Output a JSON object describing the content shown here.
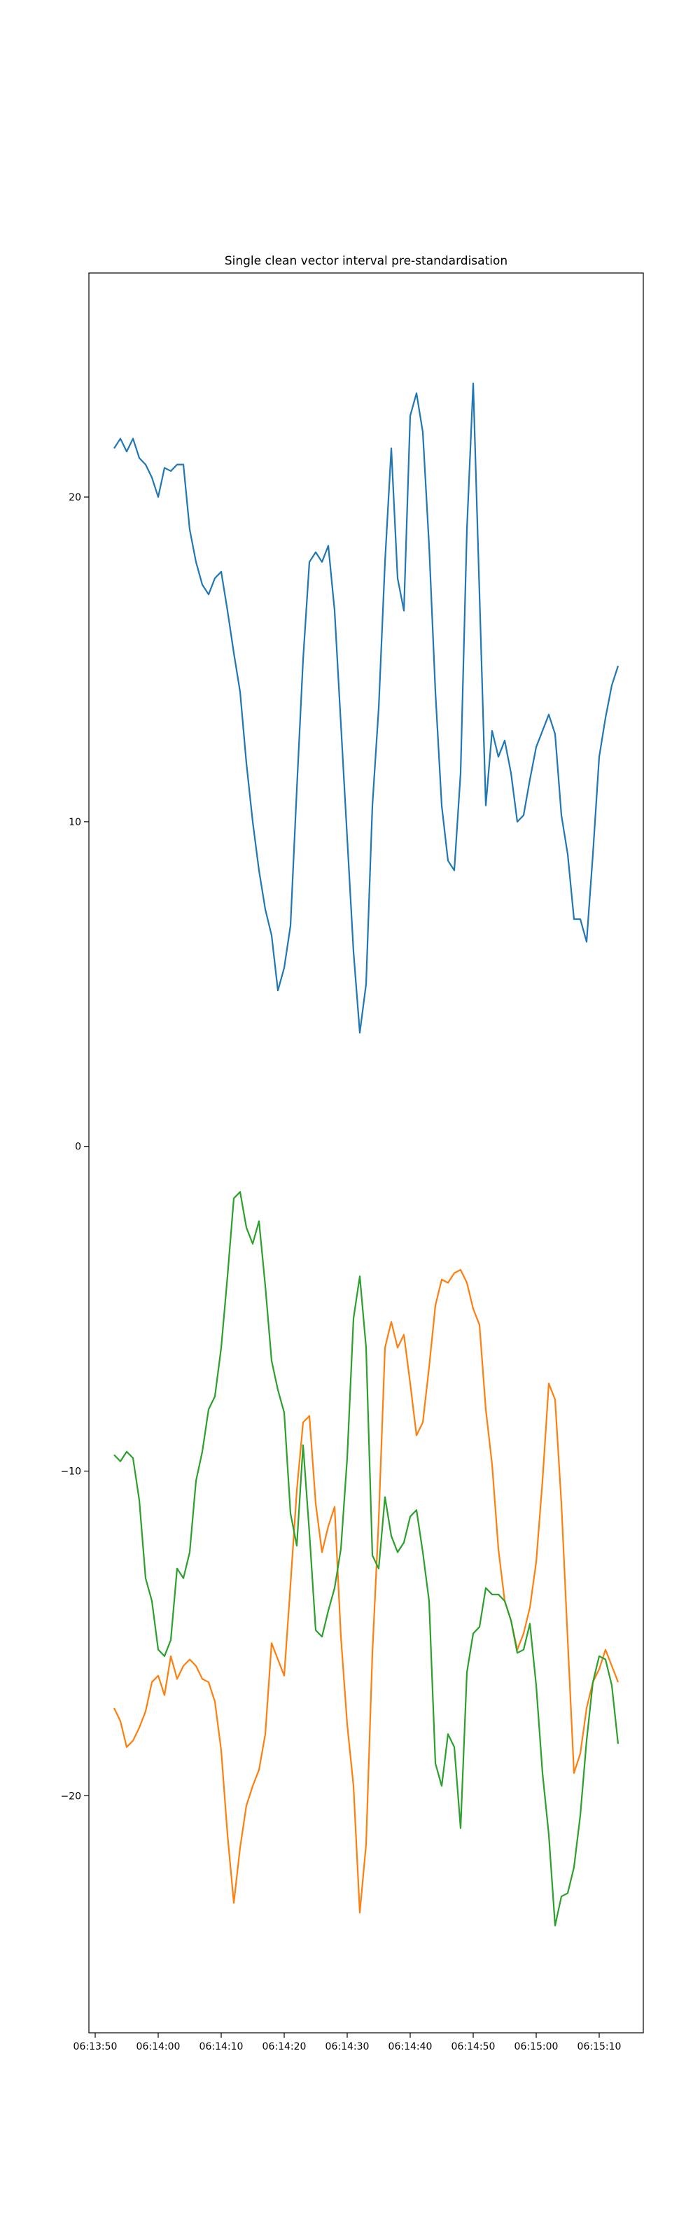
{
  "chart_data": {
    "type": "line",
    "title": "Single clean vector interval pre-standardisation",
    "x": [
      "06:13:53",
      "06:13:54",
      "06:13:55",
      "06:13:56",
      "06:13:57",
      "06:13:58",
      "06:13:59",
      "06:14:00",
      "06:14:01",
      "06:14:02",
      "06:14:03",
      "06:14:04",
      "06:14:05",
      "06:14:06",
      "06:14:07",
      "06:14:08",
      "06:14:09",
      "06:14:10",
      "06:14:11",
      "06:14:12",
      "06:14:13",
      "06:14:14",
      "06:14:15",
      "06:14:16",
      "06:14:17",
      "06:14:18",
      "06:14:19",
      "06:14:20",
      "06:14:21",
      "06:14:22",
      "06:14:23",
      "06:14:24",
      "06:14:25",
      "06:14:26",
      "06:14:27",
      "06:14:28",
      "06:14:29",
      "06:14:30",
      "06:14:31",
      "06:14:32",
      "06:14:33",
      "06:14:34",
      "06:14:35",
      "06:14:36",
      "06:14:37",
      "06:14:38",
      "06:14:39",
      "06:14:40",
      "06:14:41",
      "06:14:42",
      "06:14:43",
      "06:14:44",
      "06:14:45",
      "06:14:46",
      "06:14:47",
      "06:14:48",
      "06:14:49",
      "06:14:50",
      "06:14:51",
      "06:14:52",
      "06:14:53",
      "06:14:54",
      "06:14:55",
      "06:14:56",
      "06:14:57",
      "06:14:58",
      "06:14:59",
      "06:15:00",
      "06:15:01",
      "06:15:02",
      "06:15:03",
      "06:15:04",
      "06:15:05",
      "06:15:06",
      "06:15:07",
      "06:15:08",
      "06:15:09",
      "06:15:10",
      "06:15:11",
      "06:15:12",
      "06:15:13"
    ],
    "series": [
      {
        "color": "#1f77b4",
        "values": [
          21.5,
          21.8,
          21.4,
          21.8,
          21.2,
          21.0,
          20.6,
          20.0,
          20.9,
          20.8,
          21.0,
          21.0,
          19.0,
          18.0,
          17.3,
          17.0,
          17.5,
          17.7,
          16.5,
          15.2,
          14.0,
          11.8,
          10.0,
          8.5,
          7.3,
          6.5,
          4.8,
          5.5,
          6.8,
          11.0,
          15.0,
          18.0,
          18.3,
          18.0,
          18.5,
          16.5,
          13.0,
          9.5,
          6.0,
          3.5,
          5.0,
          10.5,
          13.5,
          18.0,
          21.5,
          17.5,
          16.5,
          22.5,
          23.2,
          22.0,
          18.5,
          14.0,
          10.5,
          8.8,
          8.5,
          11.5,
          19.0,
          23.5,
          17.0,
          10.5,
          12.8,
          12.0,
          12.5,
          11.5,
          10.0,
          10.2,
          11.3,
          12.3,
          12.8,
          13.3,
          12.7,
          10.2,
          9.0,
          7.0,
          7.0,
          6.3,
          9.0,
          12.0,
          13.2,
          14.2,
          14.8
        ]
      },
      {
        "color": "#ff7f0e",
        "values": [
          -17.3,
          -17.7,
          -18.5,
          -18.3,
          -17.9,
          -17.4,
          -16.5,
          -16.3,
          -16.9,
          -15.7,
          -16.4,
          -16.0,
          -15.8,
          -16.0,
          -16.4,
          -16.5,
          -17.1,
          -18.6,
          -21.2,
          -23.3,
          -21.6,
          -20.3,
          -19.7,
          -19.2,
          -18.1,
          -15.3,
          -15.8,
          -16.3,
          -13.5,
          -10.6,
          -8.5,
          -8.3,
          -11.0,
          -12.5,
          -11.7,
          -11.1,
          -15.1,
          -17.8,
          -19.7,
          -23.6,
          -21.5,
          -15.6,
          -11.5,
          -6.2,
          -5.4,
          -6.2,
          -5.8,
          -7.3,
          -8.9,
          -8.5,
          -6.8,
          -4.9,
          -4.1,
          -4.2,
          -3.9,
          -3.8,
          -4.2,
          -5.0,
          -5.5,
          -8.1,
          -9.8,
          -12.4,
          -14.0,
          -14.6,
          -15.5,
          -15.0,
          -14.2,
          -12.8,
          -10.3,
          -7.3,
          -7.8,
          -11.0,
          -15.2,
          -19.3,
          -18.7,
          -17.3,
          -16.5,
          -16.1,
          -15.5,
          -16.0,
          -16.5
        ]
      },
      {
        "color": "#2ca02c",
        "values": [
          -9.5,
          -9.7,
          -9.4,
          -9.6,
          -10.9,
          -13.3,
          -14.0,
          -15.5,
          -15.7,
          -15.2,
          -13.0,
          -13.3,
          -12.5,
          -10.3,
          -9.4,
          -8.1,
          -7.7,
          -6.2,
          -4.0,
          -1.6,
          -1.4,
          -2.5,
          -3.0,
          -2.3,
          -4.3,
          -6.6,
          -7.5,
          -8.2,
          -11.3,
          -12.3,
          -9.2,
          -11.9,
          -14.9,
          -15.1,
          -14.3,
          -13.6,
          -12.4,
          -9.6,
          -5.3,
          -4.0,
          -6.2,
          -12.6,
          -13.0,
          -10.8,
          -12.0,
          -12.5,
          -12.2,
          -11.4,
          -11.2,
          -12.5,
          -14.0,
          -19.0,
          -19.7,
          -18.1,
          -18.5,
          -21.0,
          -16.2,
          -15.0,
          -14.8,
          -13.6,
          -13.8,
          -13.8,
          -14.0,
          -14.6,
          -15.6,
          -15.5,
          -14.7,
          -16.6,
          -19.3,
          -21.2,
          -24.0,
          -23.1,
          -23.0,
          -22.2,
          -20.6,
          -18.3,
          -16.5,
          -15.7,
          -15.8,
          -16.6,
          -18.4
        ]
      }
    ],
    "xlim": [
      "06:13:49",
      "06:15:17"
    ],
    "xticks": [
      "06:13:50",
      "06:14:00",
      "06:14:10",
      "06:14:20",
      "06:14:30",
      "06:14:40",
      "06:14:50",
      "06:15:00",
      "06:15:10"
    ],
    "ylim": [
      -27.3,
      26.9
    ],
    "yticks": [
      {
        "value": -20,
        "label": "−20"
      },
      {
        "value": -10,
        "label": "−10"
      },
      0,
      10,
      20
    ],
    "grid": false
  }
}
